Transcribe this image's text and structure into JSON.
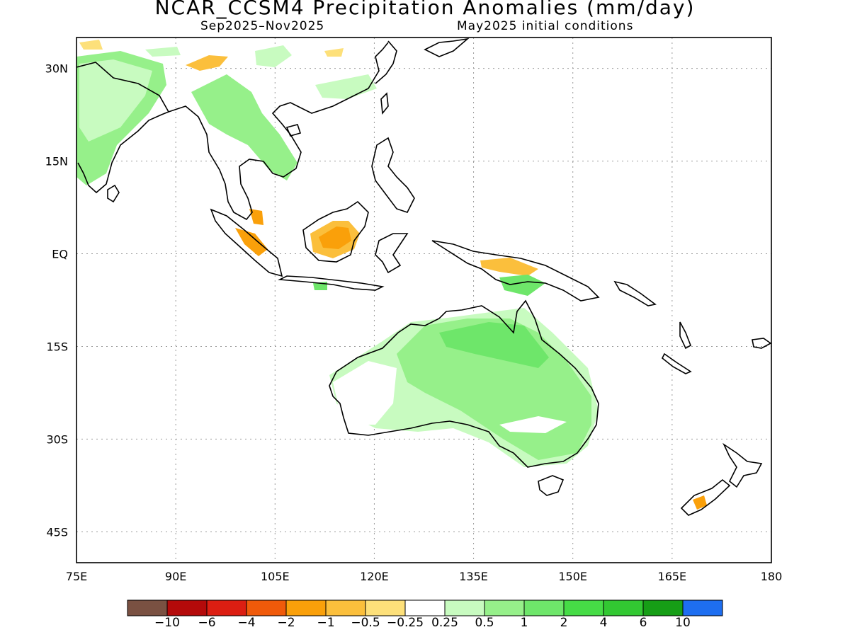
{
  "title": "NCAR_CCSM4 Precipitation Anomalies (mm/day)",
  "subtitle_left": "Sep2025–Nov2025",
  "subtitle_right": "May2025 initial conditions",
  "map": {
    "lon_range": [
      75,
      180
    ],
    "lat_range": [
      -50,
      35
    ],
    "lon_ticks": [
      "75E",
      "90E",
      "105E",
      "120E",
      "135E",
      "150E",
      "165E",
      "180"
    ],
    "lat_ticks": [
      "30N",
      "15N",
      "EQ",
      "15S",
      "30S",
      "45S"
    ],
    "grid": "dotted"
  },
  "colorbar": {
    "labels": [
      "−10",
      "−6",
      "−4",
      "−2",
      "−1",
      "−0.5",
      "−0.25",
      "0.25",
      "0.5",
      "1",
      "2",
      "4",
      "6",
      "10"
    ],
    "colors": [
      "#7a5142",
      "#b40a0a",
      "#dc1e12",
      "#f05a0a",
      "#faa00a",
      "#fbbf3c",
      "#fde07a",
      "#ffffff",
      "#c8fbc0",
      "#96f08a",
      "#6ee66a",
      "#46dc46",
      "#32c832",
      "#169e16",
      "#1e6ef0"
    ]
  }
}
